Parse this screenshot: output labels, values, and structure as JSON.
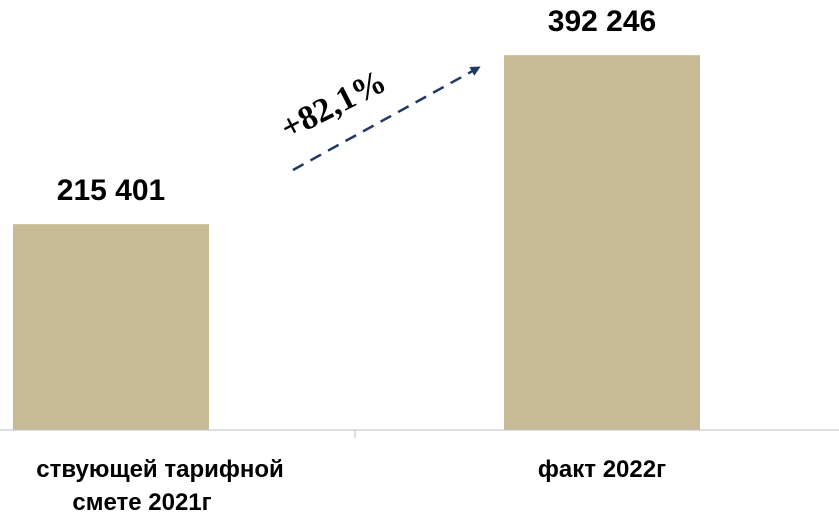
{
  "chart_data": {
    "type": "bar",
    "categories": [
      [
        "ствующей тарифной",
        "смете 2021г"
      ],
      [
        "факт 2022г"
      ]
    ],
    "values": [
      215401,
      392246
    ],
    "value_labels": [
      "215 401",
      "392 246"
    ],
    "ylim": [
      0,
      450000
    ],
    "grid": false,
    "legend": "none",
    "bar_color": "#c6bb95",
    "axis_color": "#bfbfbf",
    "annotation": {
      "text": "+82,1%",
      "color": "#1f3864",
      "style": "dashed-arrow"
    }
  }
}
